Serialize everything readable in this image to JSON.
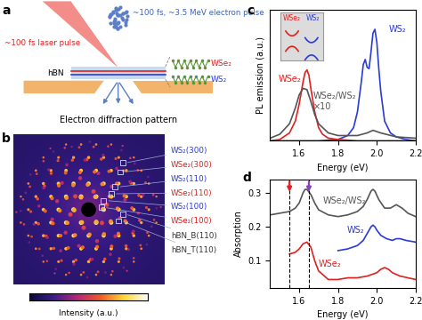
{
  "diagram": {
    "panel": "a",
    "electron_pulse": "~100 fs, ~3.5 MeV electron pulse",
    "laser_pulse": "~100 fs laser pulse",
    "substrate": "hBN",
    "top_layer": "WSe₂",
    "bottom_layer": "WS₂",
    "pattern": "Electron diffraction pattern",
    "top_color": "#e02020",
    "bottom_color": "#2a3bd6"
  },
  "image": {
    "panel": "b",
    "spots": [
      {
        "label": "WS₂(300)",
        "color": "#2a3bd6"
      },
      {
        "label": "WSe₂(300)",
        "color": "#e02020"
      },
      {
        "label": "WS₂(110)",
        "color": "#2a3bd6"
      },
      {
        "label": "WSe₂(110)",
        "color": "#e02020"
      },
      {
        "label": "WS₂(100)",
        "color": "#2a3bd6"
      },
      {
        "label": "WSe₂(100)",
        "color": "#e02020"
      },
      {
        "label": "hBN_B(110)",
        "color": "#333333"
      },
      {
        "label": "hBN_T(110)",
        "color": "#333333"
      }
    ],
    "colorbar_label": "Intensity (a.u.)"
  },
  "chart_data": [
    {
      "panel": "c",
      "type": "line",
      "xlabel": "Energy (eV)",
      "ylabel": "PL emission (a.u.)",
      "xlim": [
        1.45,
        2.2
      ],
      "xticks": [
        1.6,
        1.8,
        2.0,
        2.2
      ],
      "ylim": [
        0,
        1
      ],
      "tick_labels": "x",
      "inset_labels": [
        "WSe₂",
        "WS₂"
      ],
      "series": [
        {
          "name": "WS₂",
          "color": "#2a3bd6",
          "x": [
            1.45,
            1.7,
            1.8,
            1.85,
            1.88,
            1.9,
            1.92,
            1.93,
            1.94,
            1.95,
            1.96,
            1.97,
            1.98,
            1.99,
            2.0,
            2.01,
            2.02,
            2.04,
            2.07,
            2.1,
            2.15,
            2.2
          ],
          "values": [
            0.0,
            0.0,
            0.01,
            0.04,
            0.1,
            0.22,
            0.45,
            0.58,
            0.62,
            0.56,
            0.55,
            0.68,
            0.82,
            0.85,
            0.75,
            0.55,
            0.38,
            0.15,
            0.06,
            0.03,
            0.01,
            0.0
          ]
        },
        {
          "name": "WSe₂",
          "color": "#e02020",
          "x": [
            1.45,
            1.5,
            1.55,
            1.58,
            1.6,
            1.62,
            1.63,
            1.64,
            1.65,
            1.66,
            1.68,
            1.7,
            1.72,
            1.75,
            1.8,
            1.9,
            2.0,
            2.2
          ],
          "values": [
            0.0,
            0.01,
            0.06,
            0.15,
            0.28,
            0.45,
            0.52,
            0.54,
            0.5,
            0.4,
            0.22,
            0.1,
            0.05,
            0.02,
            0.01,
            0.0,
            0.0,
            0.0
          ]
        },
        {
          "name": "WSe₂/WS₂\n×10",
          "color": "#555555",
          "x": [
            1.45,
            1.5,
            1.55,
            1.58,
            1.6,
            1.62,
            1.64,
            1.66,
            1.68,
            1.7,
            1.75,
            1.8,
            1.9,
            1.95,
            1.98,
            2.02,
            2.1,
            2.2
          ],
          "values": [
            0.02,
            0.05,
            0.13,
            0.25,
            0.35,
            0.4,
            0.39,
            0.3,
            0.2,
            0.13,
            0.06,
            0.04,
            0.04,
            0.06,
            0.08,
            0.06,
            0.03,
            0.02
          ]
        }
      ]
    },
    {
      "panel": "d",
      "type": "line",
      "xlabel": "Energy (eV)",
      "ylabel": "Absorption",
      "xlim": [
        1.45,
        2.2
      ],
      "xticks": [
        1.6,
        1.8,
        2.0,
        2.2
      ],
      "ylim": [
        0.02,
        0.34
      ],
      "yticks": [
        0.1,
        0.2,
        0.3
      ],
      "arrows": [
        {
          "x": 1.55,
          "color": "#e02020"
        },
        {
          "x": 1.65,
          "color": "#8b3fc0"
        }
      ],
      "series": [
        {
          "name": "WSe₂/WS₂",
          "color": "#555555",
          "x": [
            1.45,
            1.5,
            1.55,
            1.58,
            1.6,
            1.62,
            1.63,
            1.64,
            1.66,
            1.68,
            1.7,
            1.75,
            1.8,
            1.85,
            1.9,
            1.93,
            1.95,
            1.97,
            1.98,
            1.99,
            2.01,
            2.04,
            2.07,
            2.1,
            2.13,
            2.16,
            2.2
          ],
          "values": [
            0.235,
            0.24,
            0.245,
            0.255,
            0.27,
            0.3,
            0.31,
            0.31,
            0.295,
            0.27,
            0.25,
            0.235,
            0.23,
            0.235,
            0.245,
            0.26,
            0.28,
            0.305,
            0.31,
            0.305,
            0.28,
            0.255,
            0.255,
            0.265,
            0.255,
            0.24,
            0.23
          ]
        },
        {
          "name": "WS₂",
          "color": "#2a3bd6",
          "x": [
            1.8,
            1.85,
            1.9,
            1.93,
            1.95,
            1.97,
            1.98,
            1.99,
            2.0,
            2.02,
            2.05,
            2.08,
            2.1,
            2.12,
            2.15,
            2.2
          ],
          "values": [
            0.13,
            0.135,
            0.145,
            0.16,
            0.18,
            0.2,
            0.205,
            0.2,
            0.19,
            0.175,
            0.165,
            0.16,
            0.165,
            0.165,
            0.16,
            0.155
          ]
        },
        {
          "name": "WSe₂",
          "color": "#e02020",
          "x": [
            1.55,
            1.58,
            1.6,
            1.62,
            1.64,
            1.66,
            1.68,
            1.7,
            1.75,
            1.8,
            1.85,
            1.9,
            1.95,
            2.0,
            2.02,
            2.04,
            2.06,
            2.08,
            2.12,
            2.16,
            2.2
          ],
          "values": [
            0.12,
            0.125,
            0.135,
            0.15,
            0.155,
            0.14,
            0.1,
            0.07,
            0.045,
            0.045,
            0.05,
            0.05,
            0.055,
            0.065,
            0.075,
            0.08,
            0.075,
            0.065,
            0.055,
            0.05,
            0.045
          ]
        }
      ]
    }
  ]
}
